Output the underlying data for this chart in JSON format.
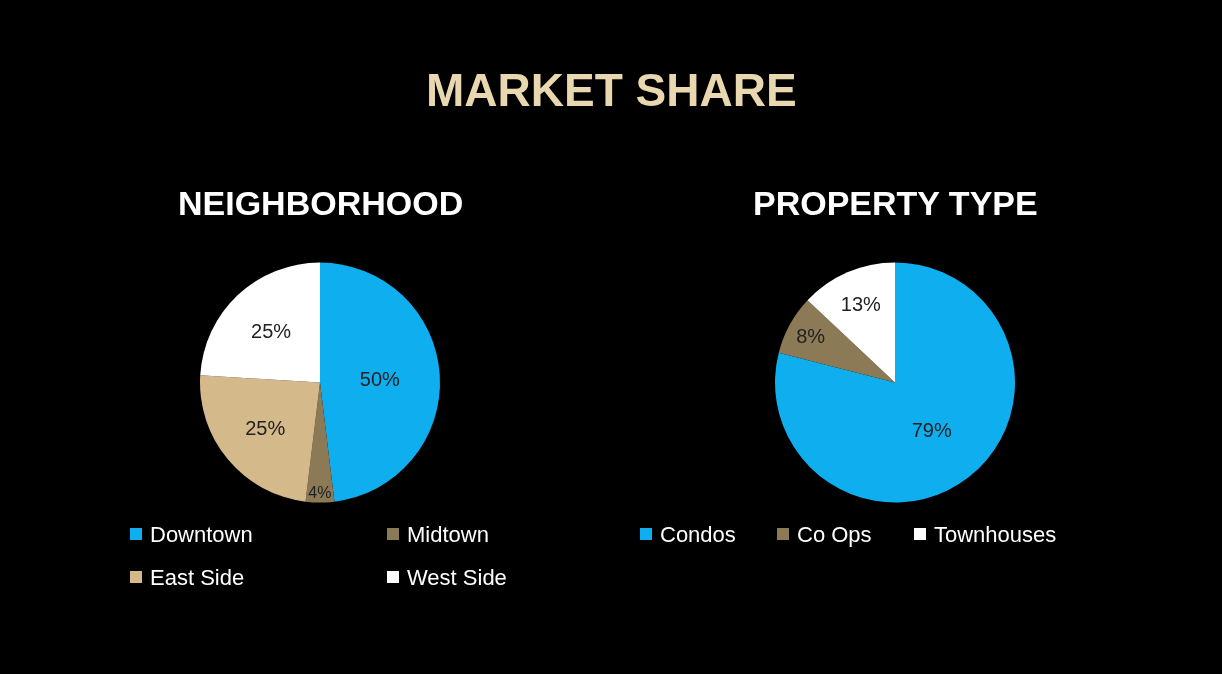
{
  "chart_data": [
    {
      "type": "other",
      "title": "MARKET SHARE"
    },
    {
      "type": "pie",
      "title": "NEIGHBORHOOD",
      "categories": [
        "Downtown",
        "Midtown",
        "East Side",
        "West Side"
      ],
      "values": [
        50,
        4,
        25,
        25
      ],
      "colors": [
        "#0eaeef",
        "#8b7a55",
        "#d4b98b",
        "#ffffff"
      ],
      "value_labels": [
        "50%",
        "4%",
        "25%",
        "25%"
      ],
      "legend": "bottom"
    },
    {
      "type": "pie",
      "title": "PROPERTY TYPE",
      "categories": [
        "Condos",
        "Co Ops",
        "Townhouses"
      ],
      "values": [
        79,
        8,
        13
      ],
      "colors": [
        "#0eaeef",
        "#8b7a55",
        "#ffffff"
      ],
      "value_labels": [
        "79%",
        "8%",
        "13%"
      ],
      "legend": "bottom"
    }
  ]
}
